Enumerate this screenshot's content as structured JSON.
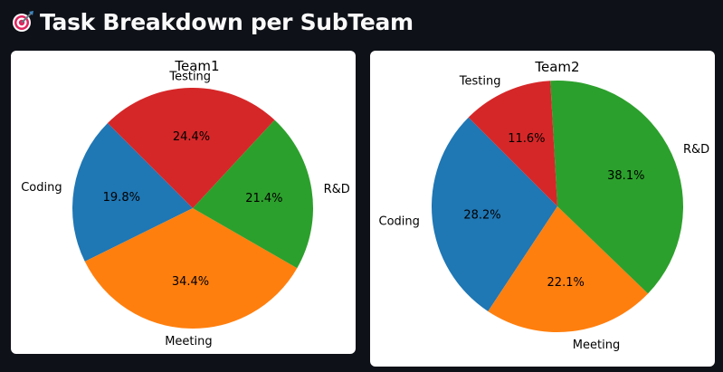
{
  "header": {
    "title": "Task Breakdown per SubTeam",
    "icon": "target-icon"
  },
  "chart_data": [
    {
      "type": "pie",
      "title": "Team1",
      "start_angle_deg": 135,
      "slices": [
        {
          "label": "Coding",
          "value": 19.8,
          "pct_label": "19.8%",
          "color": "#1f77b4"
        },
        {
          "label": "Meeting",
          "value": 34.4,
          "pct_label": "34.4%",
          "color": "#ff7f0e"
        },
        {
          "label": "R&D",
          "value": 21.4,
          "pct_label": "21.4%",
          "color": "#2ca02c"
        },
        {
          "label": "Testing",
          "value": 24.4,
          "pct_label": "24.4%",
          "color": "#d62728"
        }
      ]
    },
    {
      "type": "pie",
      "title": "Team2",
      "start_angle_deg": 135,
      "slices": [
        {
          "label": "Coding",
          "value": 28.2,
          "pct_label": "28.2%",
          "color": "#1f77b4"
        },
        {
          "label": "Meeting",
          "value": 22.1,
          "pct_label": "22.1%",
          "color": "#ff7f0e"
        },
        {
          "label": "R&D",
          "value": 38.1,
          "pct_label": "38.1%",
          "color": "#2ca02c"
        },
        {
          "label": "Testing",
          "value": 11.6,
          "pct_label": "11.6%",
          "color": "#d62728"
        }
      ]
    }
  ]
}
